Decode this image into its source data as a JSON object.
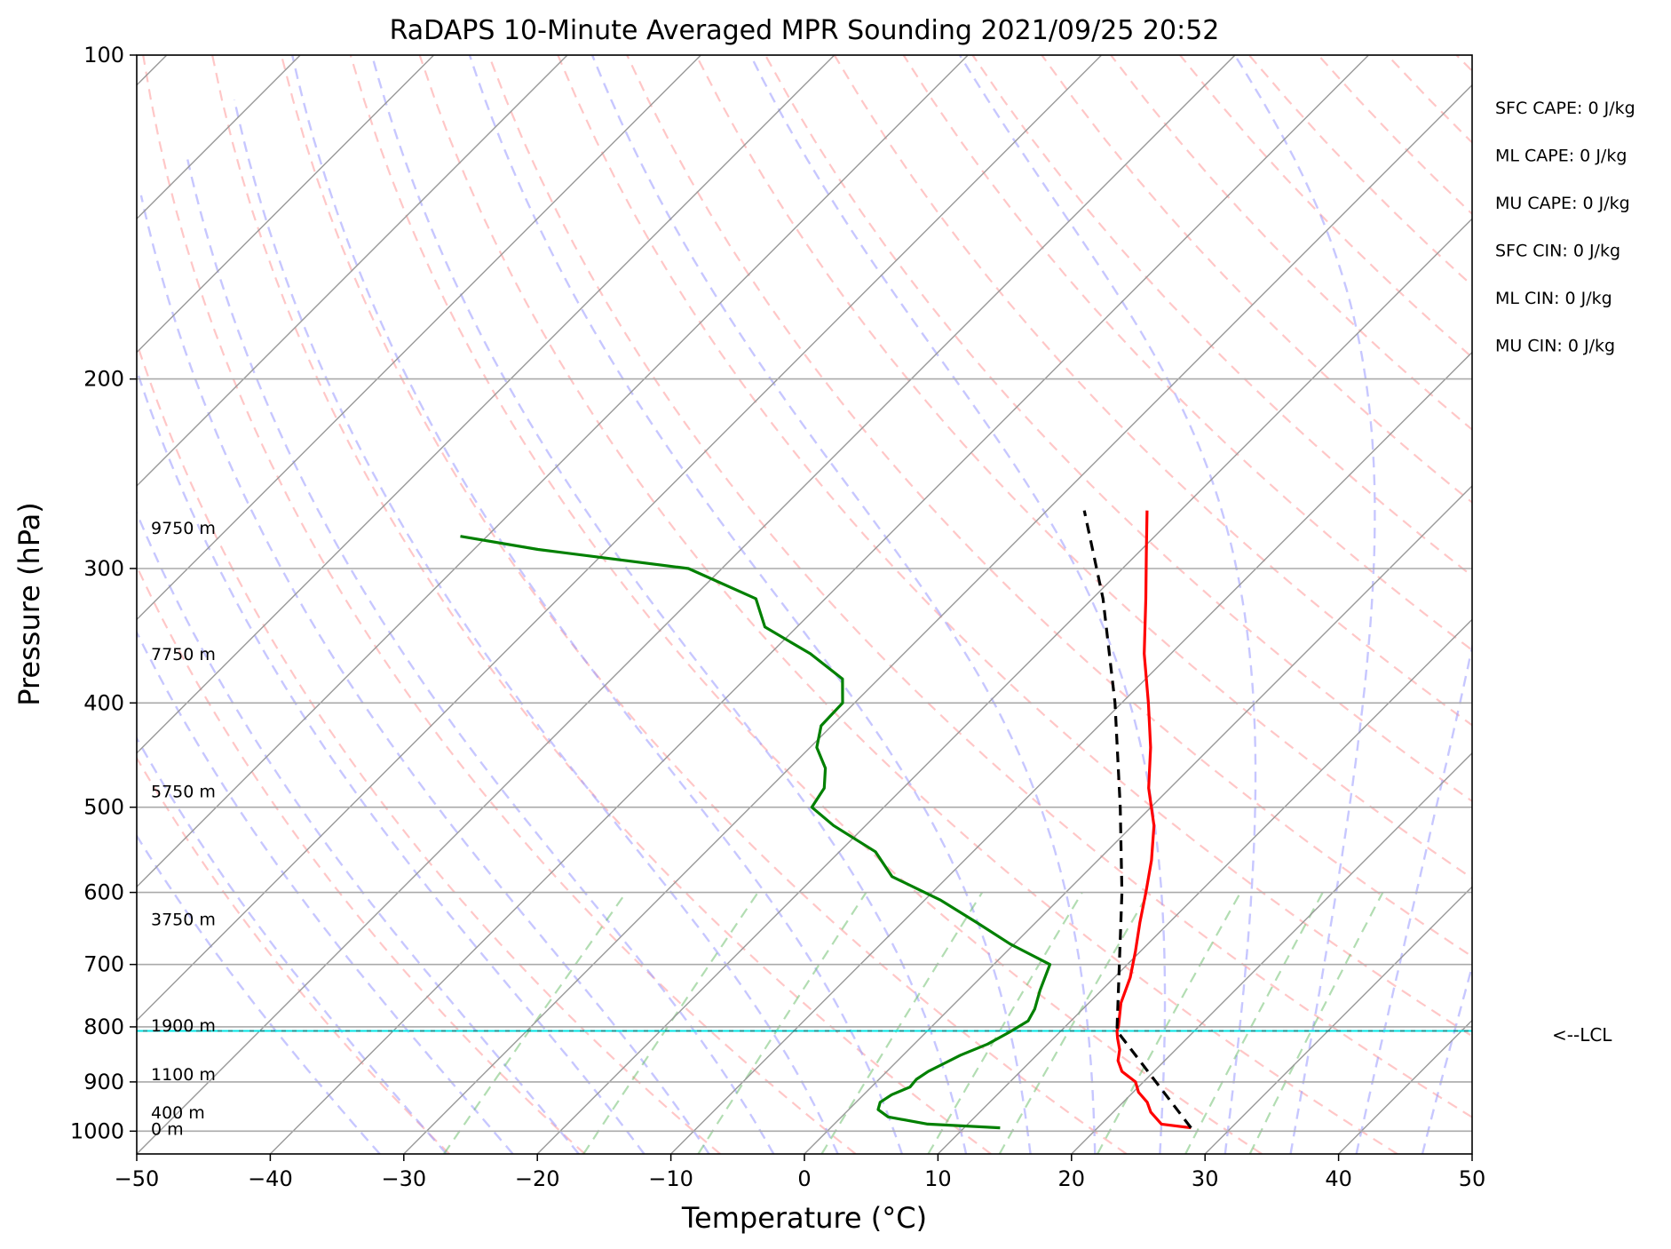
{
  "chart_data": {
    "type": "line",
    "subtype": "skew-T log-P sounding",
    "title": "RaDAPS 10-Minute Averaged MPR Sounding 2021/09/25 20:52",
    "xlabel": "Temperature (°C)",
    "ylabel": "Pressure (hPa)",
    "xlim": [
      -50,
      50
    ],
    "ylim": [
      1050,
      100
    ],
    "y_scale": "log",
    "grid": true,
    "x_ticks": [
      -50,
      -40,
      -30,
      -20,
      -10,
      0,
      10,
      20,
      30,
      40,
      50
    ],
    "x_tick_labels": [
      "−50",
      "−40",
      "−30",
      "−20",
      "−10",
      "0",
      "10",
      "20",
      "30",
      "40",
      "50"
    ],
    "y_ticks": [
      100,
      200,
      300,
      400,
      500,
      600,
      700,
      800,
      900,
      1000
    ],
    "y_tick_labels": [
      "100",
      "200",
      "300",
      "400",
      "500",
      "600",
      "700",
      "800",
      "900",
      "1000"
    ],
    "height_labels": [
      {
        "text": "9750 m",
        "pressure": 275
      },
      {
        "text": "7750 m",
        "pressure": 360
      },
      {
        "text": "5750 m",
        "pressure": 483
      },
      {
        "text": "3750 m",
        "pressure": 635
      },
      {
        "text": "1900 m",
        "pressure": 797
      },
      {
        "text": "1100 m",
        "pressure": 885
      },
      {
        "text": "400 m",
        "pressure": 960
      },
      {
        "text": "0 m",
        "pressure": 995
      }
    ],
    "stats": [
      "SFC CAPE: 0 J/kg",
      "ML CAPE: 0 J/kg",
      "MU CAPE: 0 J/kg",
      "SFC CIN: 0 J/kg",
      "ML CIN: 0 J/kg",
      "MU CIN: 0 J/kg"
    ],
    "lcl": {
      "pressure": 807,
      "label": "<--LCL"
    },
    "series": [
      {
        "id": "temperature",
        "color": "#ff0000",
        "pressure": [
          993,
          985,
          960,
          940,
          920,
          900,
          880,
          860,
          840,
          820,
          807,
          800,
          760,
          720,
          680,
          640,
          600,
          560,
          520,
          480,
          440,
          400,
          360,
          320,
          290,
          265
        ],
        "temperature": [
          27,
          24.5,
          22.8,
          21.8,
          20.4,
          19.4,
          17.6,
          16.5,
          15.8,
          14.8,
          14.2,
          14,
          12.4,
          11.2,
          9.6,
          7.8,
          6,
          4,
          1.6,
          -1.6,
          -4.5,
          -8,
          -12,
          -16,
          -19.4,
          -22.5
        ]
      },
      {
        "id": "dewpoint",
        "color": "#008000",
        "pressure": [
          993,
          985,
          970,
          955,
          940,
          925,
          910,
          895,
          880,
          865,
          850,
          830,
          810,
          790,
          770,
          740,
          700,
          670,
          640,
          610,
          580,
          550,
          520,
          500,
          480,
          460,
          440,
          420,
          400,
          380,
          360,
          340,
          320,
          300,
          288,
          280
        ],
        "temperature": [
          12.7,
          7,
          3.5,
          2.2,
          1.8,
          2.1,
          2.9,
          2.8,
          3.1,
          3.7,
          4.3,
          5.5,
          6.2,
          6.8,
          6.4,
          5.4,
          4.2,
          -0.3,
          -4.4,
          -8.8,
          -14.2,
          -17.3,
          -22.4,
          -25.4,
          -25.9,
          -27.3,
          -29.5,
          -30.8,
          -30.9,
          -32.7,
          -37,
          -42.4,
          -45.2,
          -52.5,
          -65.2,
          -72
        ]
      },
      {
        "id": "parcel",
        "color": "#000000",
        "dashed": true,
        "pressure": [
          993,
          807,
          600,
          500,
          400,
          320,
          265
        ],
        "temperature": [
          27,
          14.2,
          4.2,
          -2.3,
          -10.5,
          -19.2,
          -27.2
        ]
      }
    ]
  }
}
